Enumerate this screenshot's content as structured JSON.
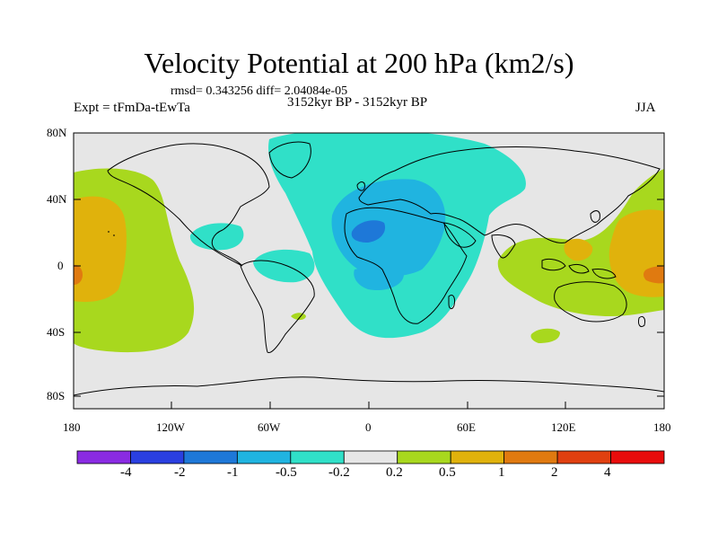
{
  "title": "Velocity Potential at 200 hPa (km2/s)",
  "stats": "rmsd= 0.343256  diff= 2.04084e-05",
  "experiment": "Expt = tFmDa-tEwTa",
  "period": "3152kyr BP - 3152kyr BP",
  "season": "JJA",
  "latitude_labels": [
    "80N",
    "40N",
    "0",
    "40S",
    "80S"
  ],
  "longitude_labels": [
    "180",
    "120W",
    "60W",
    "0",
    "60E",
    "120E",
    "180"
  ],
  "colorbar": {
    "labels": [
      "-4",
      "-2",
      "-1",
      "-0.5",
      "-0.2",
      "0.2",
      "0.5",
      "1",
      "2",
      "4"
    ],
    "colors": [
      "#8a2be2",
      "#2a3fe0",
      "#1e78d8",
      "#20b4e0",
      "#30e0c8",
      "#e6e6e6",
      "#a8d81e",
      "#e0b20c",
      "#e07a10",
      "#e04010",
      "#e80c0c"
    ]
  },
  "palette": {
    "neutral": "#e6e6e6",
    "teal": "#30e0c8",
    "cyan": "#20b4e0",
    "blue": "#1e78d8",
    "green": "#a8d81e",
    "orange": "#e0b20c",
    "dark_orange": "#e07a10"
  }
}
